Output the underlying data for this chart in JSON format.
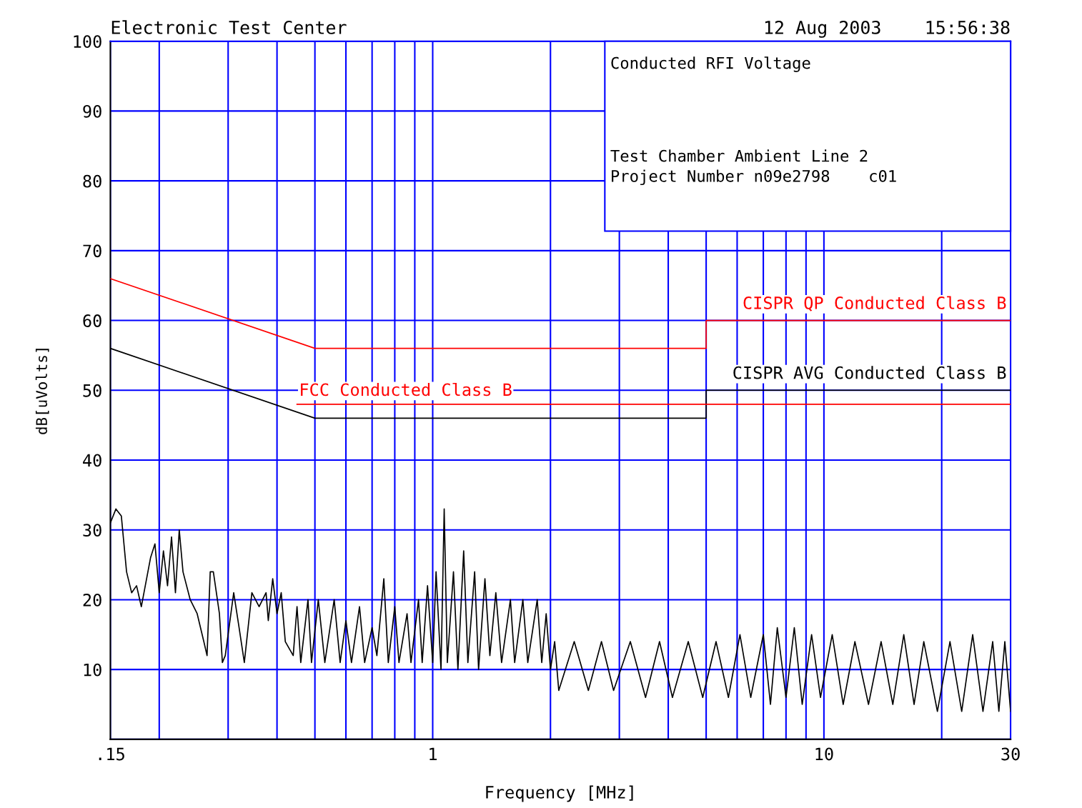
{
  "chart_data": {
    "type": "line",
    "title": "Electronic Test Center",
    "subtitle": "12 Aug 2003    15:56:38",
    "xlabel": "Frequency [MHz]",
    "ylabel": "dB[uVolts]",
    "log": "x",
    "xlim": [
      0.15,
      30
    ],
    "xticks": [
      {
        "value": 0.15,
        "label": ".15"
      },
      {
        "value": 0.2,
        "label": null
      },
      {
        "value": 0.3,
        "label": null
      },
      {
        "value": 0.4,
        "label": null
      },
      {
        "value": 0.5,
        "label": null
      },
      {
        "value": 0.6,
        "label": null
      },
      {
        "value": 0.7,
        "label": null
      },
      {
        "value": 0.8,
        "label": null
      },
      {
        "value": 0.9,
        "label": null
      },
      1,
      {
        "value": 2,
        "label": null
      },
      {
        "value": 3,
        "label": null
      },
      {
        "value": 4,
        "label": null
      },
      {
        "value": 5,
        "label": null
      },
      {
        "value": 6,
        "label": null
      },
      {
        "value": 7,
        "label": null
      },
      {
        "value": 8,
        "label": null
      },
      {
        "value": 9,
        "label": null
      },
      10,
      {
        "value": 20,
        "label": null
      },
      30
    ],
    "ylim": [
      0,
      100
    ],
    "yticks": [
      {
        "value": 0,
        "label": null
      },
      10,
      20,
      30,
      40,
      50,
      60,
      70,
      80,
      90,
      100
    ],
    "grid": true,
    "marker": "none",
    "line_style": "solid",
    "series": [
      {
        "name": "CISPR QP Conducted Class B",
        "color": "#ff0000",
        "x": [
          0.15,
          0.5,
          0.5,
          5,
          5,
          30
        ],
        "values": [
          66,
          56,
          56,
          56,
          60,
          60
        ]
      },
      {
        "name": "CISPR AVG Conducted Class B",
        "color": "#000000",
        "x": [
          0.15,
          0.5,
          0.5,
          5,
          5,
          30
        ],
        "values": [
          56,
          46,
          46,
          46,
          50,
          50
        ]
      },
      {
        "name": "FCC Conducted Class B",
        "color": "#ff0000",
        "x": [
          0.45,
          30
        ],
        "values": [
          48,
          48
        ]
      },
      {
        "color": "#000000",
        "x": [
          0.15,
          0.155,
          0.16,
          0.165,
          0.17,
          0.175,
          0.18,
          0.19,
          0.195,
          0.2,
          0.205,
          0.21,
          0.215,
          0.22,
          0.225,
          0.23,
          0.24,
          0.25,
          0.26,
          0.265,
          0.27,
          0.275,
          0.285,
          0.29,
          0.295,
          0.31,
          0.32,
          0.33,
          0.345,
          0.36,
          0.375,
          0.38,
          0.39,
          0.4,
          0.41,
          0.42,
          0.44,
          0.45,
          0.46,
          0.48,
          0.49,
          0.51,
          0.53,
          0.56,
          0.58,
          0.6,
          0.62,
          0.65,
          0.67,
          0.7,
          0.72,
          0.75,
          0.77,
          0.8,
          0.82,
          0.86,
          0.88,
          0.92,
          0.94,
          0.97,
          1.0,
          1.02,
          1.05,
          1.07,
          1.09,
          1.13,
          1.16,
          1.2,
          1.23,
          1.28,
          1.31,
          1.36,
          1.4,
          1.45,
          1.5,
          1.58,
          1.62,
          1.7,
          1.75,
          1.85,
          1.9,
          1.95,
          2.0,
          2.05,
          2.1,
          2.3,
          2.5,
          2.7,
          2.9,
          3.2,
          3.5,
          3.8,
          4.1,
          4.5,
          4.9,
          5.3,
          5.7,
          6.1,
          6.5,
          7.0,
          7.3,
          7.6,
          8.0,
          8.4,
          8.8,
          9.3,
          9.8,
          10.5,
          11.2,
          12,
          13,
          14,
          15,
          16,
          17,
          18,
          19.5,
          21,
          22.5,
          24,
          25.5,
          27,
          28,
          29,
          30
        ],
        "values": [
          31,
          33,
          32,
          24,
          21,
          22,
          19,
          26,
          28,
          21,
          27,
          22,
          29,
          21,
          30,
          24,
          20,
          18,
          14,
          12,
          24,
          24,
          18,
          11,
          12,
          21,
          16,
          11,
          21,
          19,
          21,
          17,
          23,
          18,
          21,
          14,
          12,
          19,
          11,
          20,
          11,
          20,
          11,
          20,
          11,
          17,
          11,
          19,
          11,
          16,
          12,
          23,
          11,
          19,
          11,
          18,
          11,
          20,
          11,
          22,
          11,
          24,
          10,
          33,
          11,
          24,
          10,
          27,
          11,
          24,
          10,
          23,
          12,
          21,
          11,
          20,
          11,
          20,
          11,
          20,
          11,
          18,
          10,
          14,
          7,
          14,
          7,
          14,
          7,
          14,
          6,
          14,
          6,
          14,
          6,
          14,
          6,
          15,
          6,
          15,
          5,
          16,
          6,
          16,
          5,
          15,
          6,
          15,
          5,
          14,
          5,
          14,
          5,
          15,
          5,
          14,
          4,
          14,
          4,
          15,
          4,
          14,
          4,
          14,
          4
        ]
      }
    ],
    "annotations": [
      "Conducted RFI Voltage",
      "Test Chamber Ambient Line 2",
      "Project Number n09e2798    c01"
    ]
  }
}
